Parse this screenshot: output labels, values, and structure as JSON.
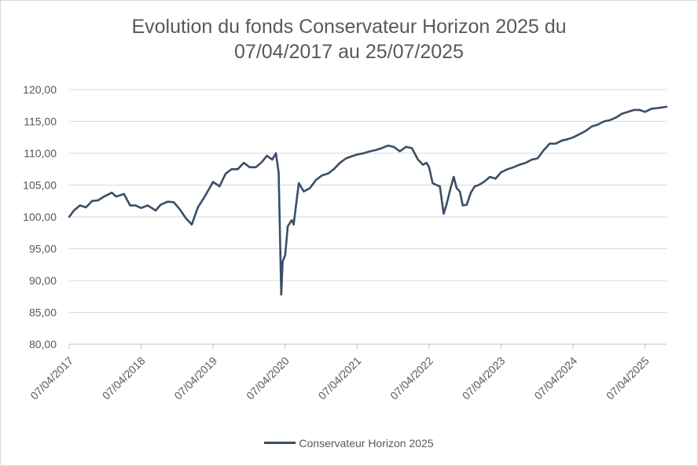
{
  "chart_data": {
    "type": "line",
    "title_line1": "Evolution du fonds Conservateur Horizon 2025 du",
    "title_line2": "07/04/2017 au 25/07/2025",
    "xlabel": "",
    "ylabel": "",
    "ylim": [
      80,
      120
    ],
    "yticks": [
      "80,00",
      "85,00",
      "90,00",
      "95,00",
      "100,00",
      "105,00",
      "110,00",
      "115,00",
      "120,00"
    ],
    "xticks": [
      "07/04/2017",
      "07/04/2018",
      "07/04/2019",
      "07/04/2020",
      "07/04/2021",
      "07/04/2022",
      "07/04/2023",
      "07/04/2024",
      "07/04/2025"
    ],
    "xlim": [
      "07/04/2017",
      "25/07/2025"
    ],
    "grid": true,
    "legend_position": "bottom",
    "series": [
      {
        "name": "Conservateur Horizon 2025",
        "color": "#3a4e66",
        "points": [
          [
            "2017-04-07",
            100.0
          ],
          [
            "2017-05-01",
            101.0
          ],
          [
            "2017-06-01",
            101.8
          ],
          [
            "2017-07-01",
            101.5
          ],
          [
            "2017-08-01",
            102.5
          ],
          [
            "2017-09-01",
            102.6
          ],
          [
            "2017-10-01",
            103.2
          ],
          [
            "2017-11-10",
            103.8
          ],
          [
            "2017-12-01",
            103.2
          ],
          [
            "2018-01-10",
            103.6
          ],
          [
            "2018-02-10",
            101.8
          ],
          [
            "2018-03-10",
            101.8
          ],
          [
            "2018-04-07",
            101.4
          ],
          [
            "2018-05-10",
            101.8
          ],
          [
            "2018-06-20",
            101.0
          ],
          [
            "2018-07-15",
            101.9
          ],
          [
            "2018-08-20",
            102.4
          ],
          [
            "2018-09-20",
            102.3
          ],
          [
            "2018-10-20",
            101.2
          ],
          [
            "2018-11-20",
            99.8
          ],
          [
            "2018-12-20",
            98.8
          ],
          [
            "2019-01-20",
            101.5
          ],
          [
            "2019-02-20",
            103.0
          ],
          [
            "2019-03-20",
            104.5
          ],
          [
            "2019-04-07",
            105.5
          ],
          [
            "2019-05-10",
            104.8
          ],
          [
            "2019-06-10",
            106.8
          ],
          [
            "2019-07-10",
            107.5
          ],
          [
            "2019-08-10",
            107.5
          ],
          [
            "2019-09-10",
            108.5
          ],
          [
            "2019-10-10",
            107.8
          ],
          [
            "2019-11-10",
            107.8
          ],
          [
            "2019-12-10",
            108.6
          ],
          [
            "2020-01-05",
            109.6
          ],
          [
            "2020-02-01",
            109.0
          ],
          [
            "2020-02-20",
            110.0
          ],
          [
            "2020-03-05",
            107.0
          ],
          [
            "2020-03-18",
            87.8
          ],
          [
            "2020-03-25",
            93.0
          ],
          [
            "2020-04-07",
            94.0
          ],
          [
            "2020-04-20",
            98.5
          ],
          [
            "2020-05-10",
            99.5
          ],
          [
            "2020-05-20",
            98.8
          ],
          [
            "2020-06-05",
            102.8
          ],
          [
            "2020-06-15",
            105.3
          ],
          [
            "2020-07-10",
            104.0
          ],
          [
            "2020-08-10",
            104.5
          ],
          [
            "2020-09-10",
            105.8
          ],
          [
            "2020-10-10",
            106.5
          ],
          [
            "2020-11-10",
            106.8
          ],
          [
            "2020-12-10",
            107.5
          ],
          [
            "2021-01-10",
            108.5
          ],
          [
            "2021-02-10",
            109.2
          ],
          [
            "2021-03-10",
            109.5
          ],
          [
            "2021-04-07",
            109.8
          ],
          [
            "2021-05-10",
            110.0
          ],
          [
            "2021-06-10",
            110.3
          ],
          [
            "2021-07-10",
            110.5
          ],
          [
            "2021-08-10",
            110.8
          ],
          [
            "2021-09-10",
            111.2
          ],
          [
            "2021-10-10",
            111.0
          ],
          [
            "2021-11-10",
            110.3
          ],
          [
            "2021-12-10",
            111.0
          ],
          [
            "2022-01-10",
            110.8
          ],
          [
            "2022-02-10",
            109.0
          ],
          [
            "2022-03-07",
            108.2
          ],
          [
            "2022-03-25",
            108.5
          ],
          [
            "2022-04-07",
            107.8
          ],
          [
            "2022-04-25",
            105.3
          ],
          [
            "2022-05-15",
            105.0
          ],
          [
            "2022-06-01",
            104.8
          ],
          [
            "2022-06-20",
            100.5
          ],
          [
            "2022-07-05",
            102.0
          ],
          [
            "2022-07-25",
            104.5
          ],
          [
            "2022-08-10",
            106.3
          ],
          [
            "2022-08-25",
            104.5
          ],
          [
            "2022-09-10",
            104.0
          ],
          [
            "2022-09-25",
            101.8
          ],
          [
            "2022-10-15",
            101.9
          ],
          [
            "2022-11-05",
            103.8
          ],
          [
            "2022-11-25",
            104.8
          ],
          [
            "2022-12-15",
            105.0
          ],
          [
            "2023-01-10",
            105.5
          ],
          [
            "2023-02-10",
            106.3
          ],
          [
            "2023-03-10",
            106.0
          ],
          [
            "2023-04-07",
            107.0
          ],
          [
            "2023-05-10",
            107.5
          ],
          [
            "2023-06-10",
            107.8
          ],
          [
            "2023-07-10",
            108.2
          ],
          [
            "2023-08-10",
            108.5
          ],
          [
            "2023-09-10",
            109.0
          ],
          [
            "2023-10-10",
            109.2
          ],
          [
            "2023-11-10",
            110.5
          ],
          [
            "2023-12-10",
            111.5
          ],
          [
            "2024-01-10",
            111.5
          ],
          [
            "2024-02-10",
            112.0
          ],
          [
            "2024-03-10",
            112.2
          ],
          [
            "2024-04-07",
            112.5
          ],
          [
            "2024-05-10",
            113.0
          ],
          [
            "2024-06-10",
            113.5
          ],
          [
            "2024-07-10",
            114.2
          ],
          [
            "2024-08-10",
            114.5
          ],
          [
            "2024-09-10",
            115.0
          ],
          [
            "2024-10-10",
            115.2
          ],
          [
            "2024-11-10",
            115.6
          ],
          [
            "2024-12-10",
            116.2
          ],
          [
            "2025-01-10",
            116.5
          ],
          [
            "2025-02-10",
            116.8
          ],
          [
            "2025-03-10",
            116.8
          ],
          [
            "2025-04-07",
            116.5
          ],
          [
            "2025-05-10",
            117.0
          ],
          [
            "2025-06-10",
            117.1
          ],
          [
            "2025-07-25",
            117.3
          ]
        ]
      }
    ]
  }
}
